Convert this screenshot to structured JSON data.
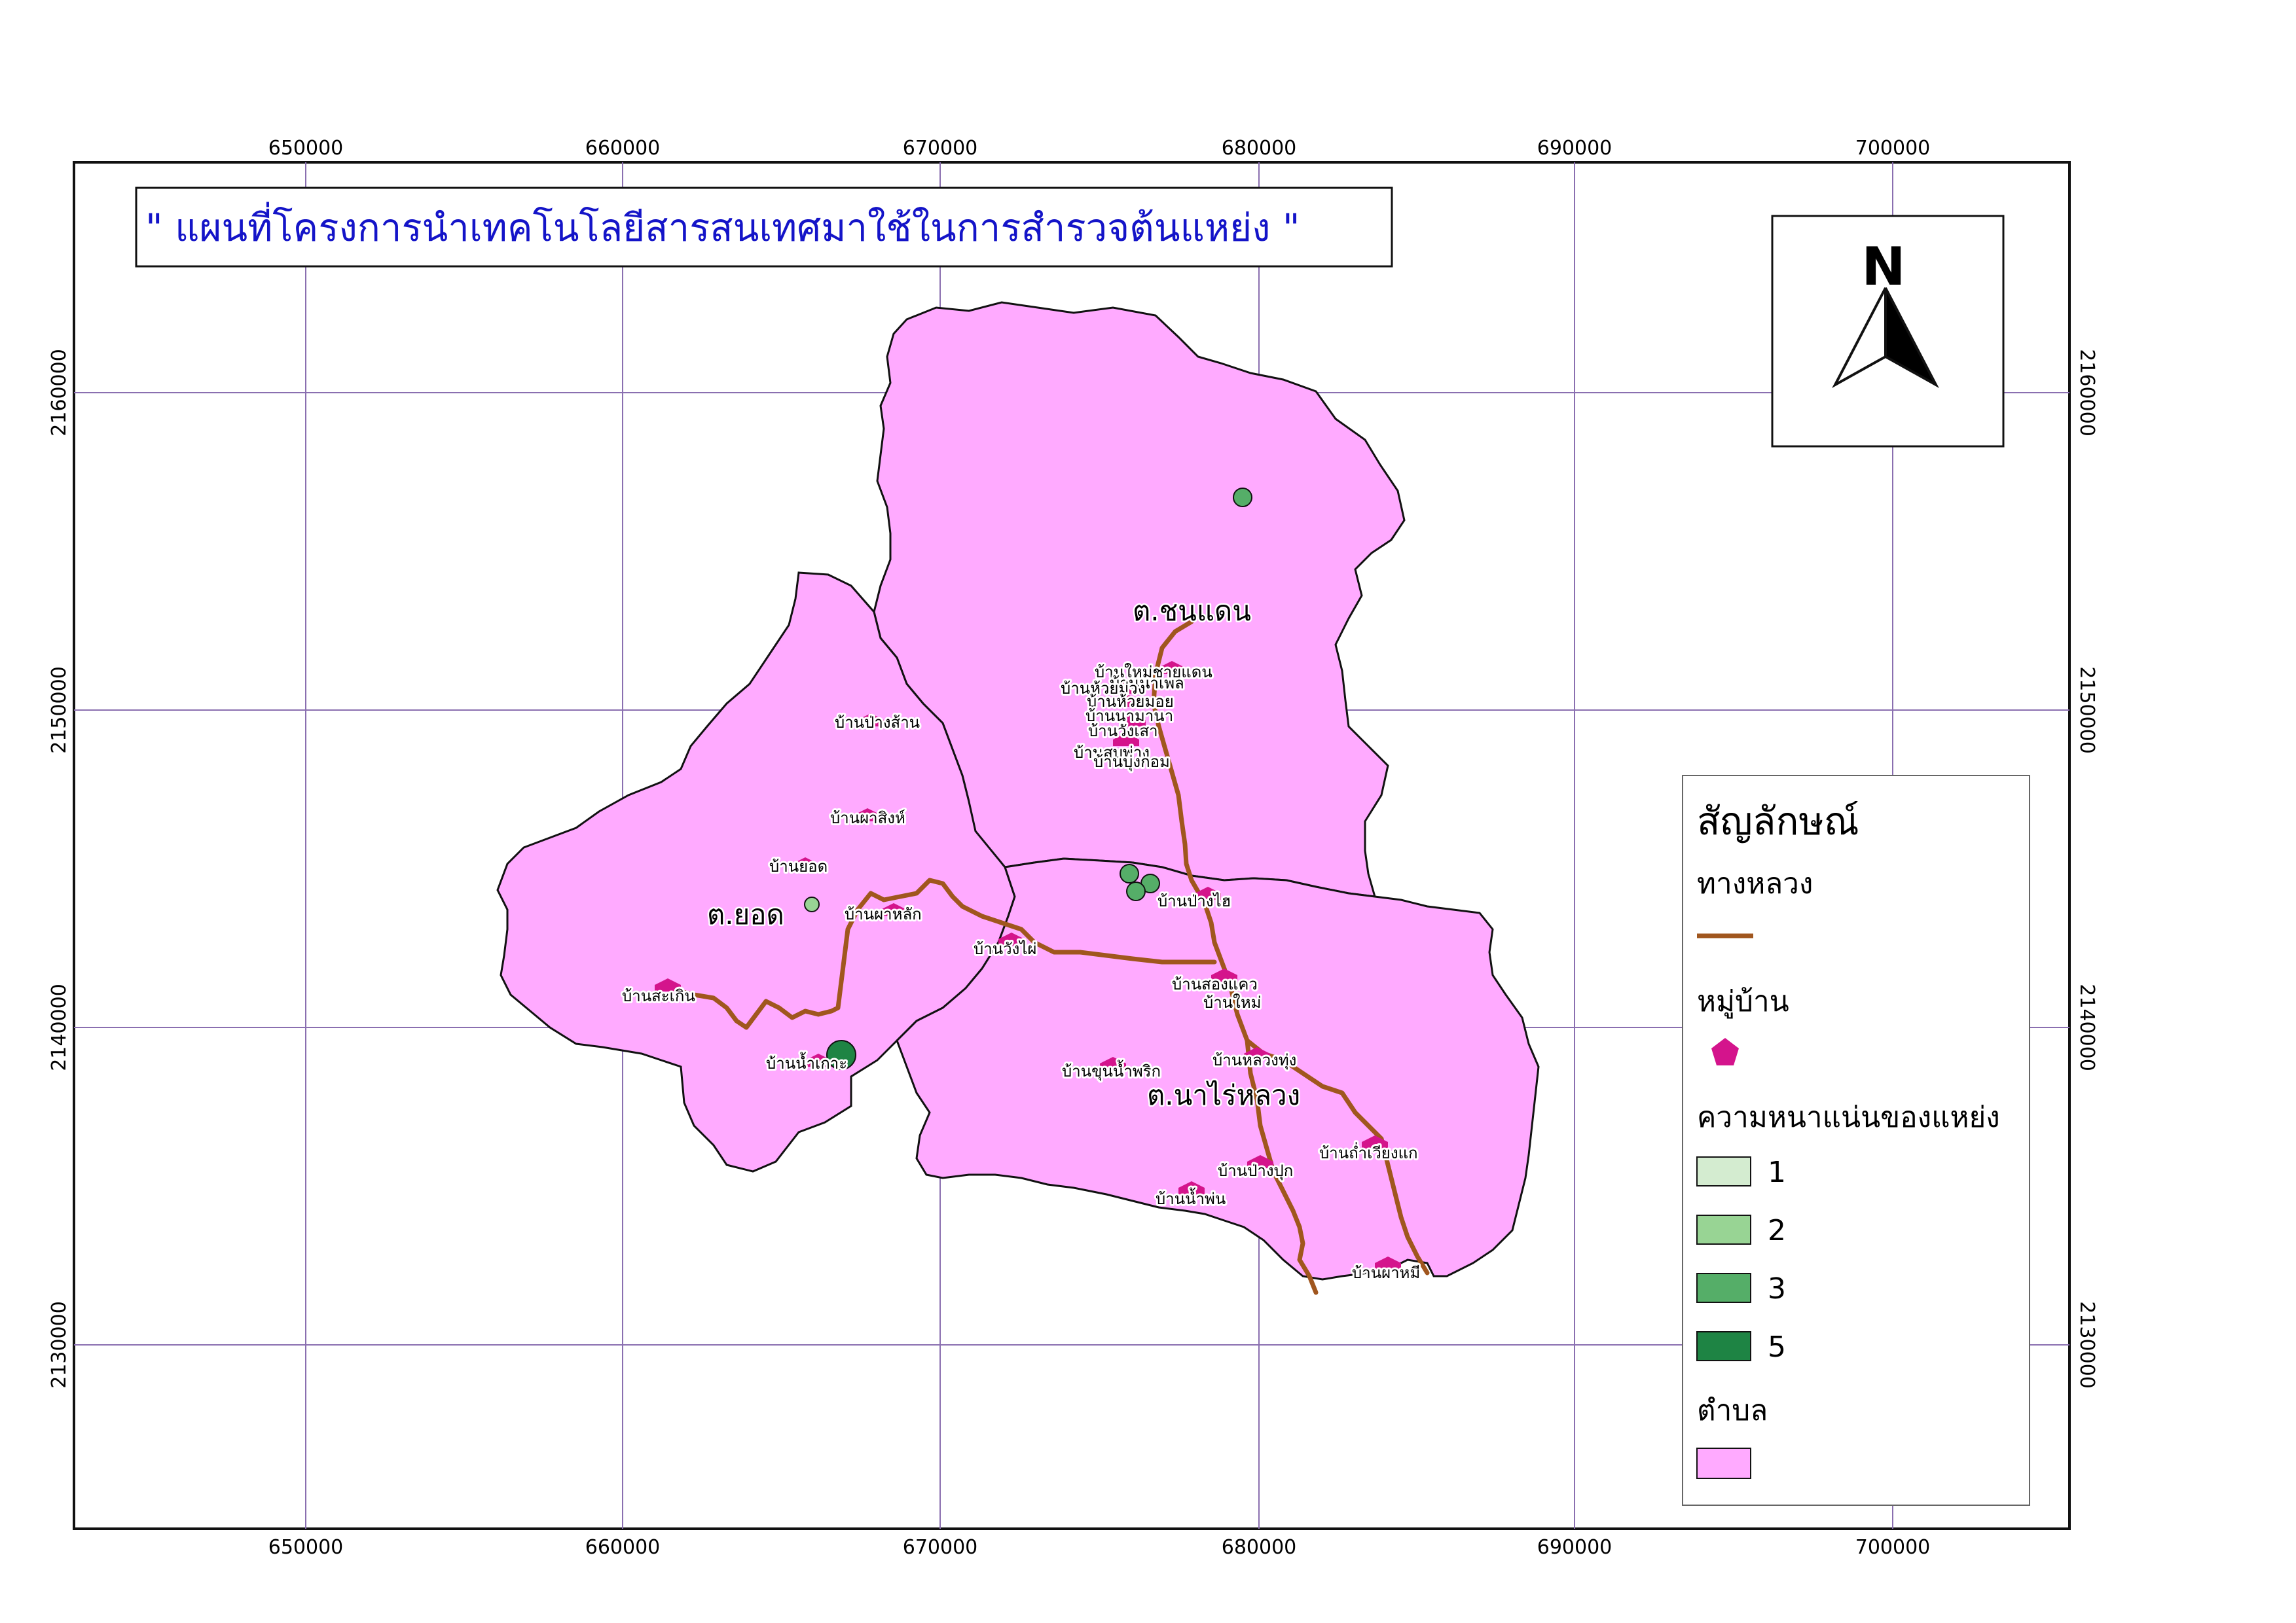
{
  "title": "\" แผนที่โครงการนำเทคโนโลยีสารสนเทศมาใช้ในการสำรวจต้นแหย่ง \"",
  "north_letter": "N",
  "grid": {
    "x_labels": [
      "650000",
      "660000",
      "670000",
      "680000",
      "690000",
      "700000"
    ],
    "y_labels": [
      "2160000",
      "2150000",
      "2140000",
      "2130000"
    ]
  },
  "tambons": [
    {
      "name": "ต.ชนแดน"
    },
    {
      "name": "ต.ยอด"
    },
    {
      "name": "ต.นาไร่หลวง"
    }
  ],
  "villages": [
    {
      "name": "บ้านใหม่ชายแดน"
    },
    {
      "name": "บ้านนาเพล"
    },
    {
      "name": "บ้านห้วยม่วง"
    },
    {
      "name": "บ้านห้วยมอย"
    },
    {
      "name": "บ้านนามานา"
    },
    {
      "name": "บ้านวังเสา"
    },
    {
      "name": "บ้านสบพ่าง"
    },
    {
      "name": "บ้านบุ่งกอม"
    },
    {
      "name": "บ้านป่างส้าน"
    },
    {
      "name": "บ้านผาสิงห์"
    },
    {
      "name": "บ้านยอด"
    },
    {
      "name": "บ้านผาหลัก"
    },
    {
      "name": "บ้านสะเกิน"
    },
    {
      "name": "บ้านน้ำเกาะ"
    },
    {
      "name": "บ้านวังไผ่"
    },
    {
      "name": "บ้านป่างไฮ"
    },
    {
      "name": "บ้านสองแคว"
    },
    {
      "name": "บ้านใหม่"
    },
    {
      "name": "บ้านขุนน้ำพริก"
    },
    {
      "name": "บ้านหลวงทุ่ง"
    },
    {
      "name": "บ้านถ่ำเวียงแก"
    },
    {
      "name": "บ้านป่างปุก"
    },
    {
      "name": "บ้านน้ำพ่น"
    },
    {
      "name": "บ้านผาหมี"
    }
  ],
  "density_points": [
    {
      "density": 3
    },
    {
      "density": 3
    },
    {
      "density": 3
    },
    {
      "density": 3
    },
    {
      "density": 2
    },
    {
      "density": 5
    }
  ],
  "legend": {
    "title": "สัญลักษณ์",
    "road_label": "ทางหลวง",
    "village_label": "หมู่บ้าน",
    "density_label": "ความหนาแน่นของแหย่ง",
    "density_items": [
      {
        "value": "1",
        "color": "#d4ecd0"
      },
      {
        "value": "2",
        "color": "#98d494"
      },
      {
        "value": "3",
        "color": "#55ae68"
      },
      {
        "value": "5",
        "color": "#1e8444"
      }
    ],
    "tambon_label": "ตำบล"
  },
  "colors": {
    "district_fill": "#ffaaff",
    "road": "#a0561e",
    "village_marker": "#d4148c",
    "title_text": "#1414c8",
    "grid": "#8a6fb0"
  }
}
